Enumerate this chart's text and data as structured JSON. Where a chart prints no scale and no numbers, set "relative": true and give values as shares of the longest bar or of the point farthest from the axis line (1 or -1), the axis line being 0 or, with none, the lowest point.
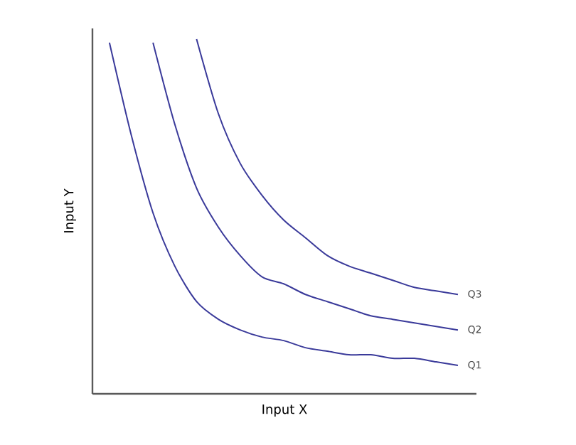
{
  "chart_data": {
    "type": "line",
    "relative": true,
    "xlabel": "Input X",
    "ylabel": "Input Y",
    "categories": [
      null,
      null,
      null,
      null,
      null,
      null,
      null,
      null,
      null,
      null,
      null,
      null,
      null,
      null,
      null,
      null,
      null
    ],
    "series": [
      {
        "name": "Q1",
        "color": "#3a3a9a",
        "values": [
          0.99,
          0.73,
          0.51,
          0.36,
          0.26,
          0.21,
          0.18,
          0.16,
          0.15,
          0.13,
          0.12,
          0.11,
          0.11,
          0.1,
          0.1,
          0.09,
          0.08
        ]
      },
      {
        "name": "Q2",
        "color": "#3a3a9a",
        "values": [
          null,
          null,
          0.99,
          0.76,
          0.58,
          0.47,
          0.39,
          0.33,
          0.31,
          0.28,
          0.26,
          0.24,
          0.22,
          0.21,
          0.2,
          0.19,
          0.18
        ]
      },
      {
        "name": "Q3",
        "color": "#3a3a9a",
        "values": [
          null,
          null,
          null,
          null,
          1.0,
          0.79,
          0.65,
          0.56,
          0.49,
          0.44,
          0.39,
          0.36,
          0.34,
          0.32,
          0.3,
          0.29,
          0.28
        ]
      }
    ]
  }
}
